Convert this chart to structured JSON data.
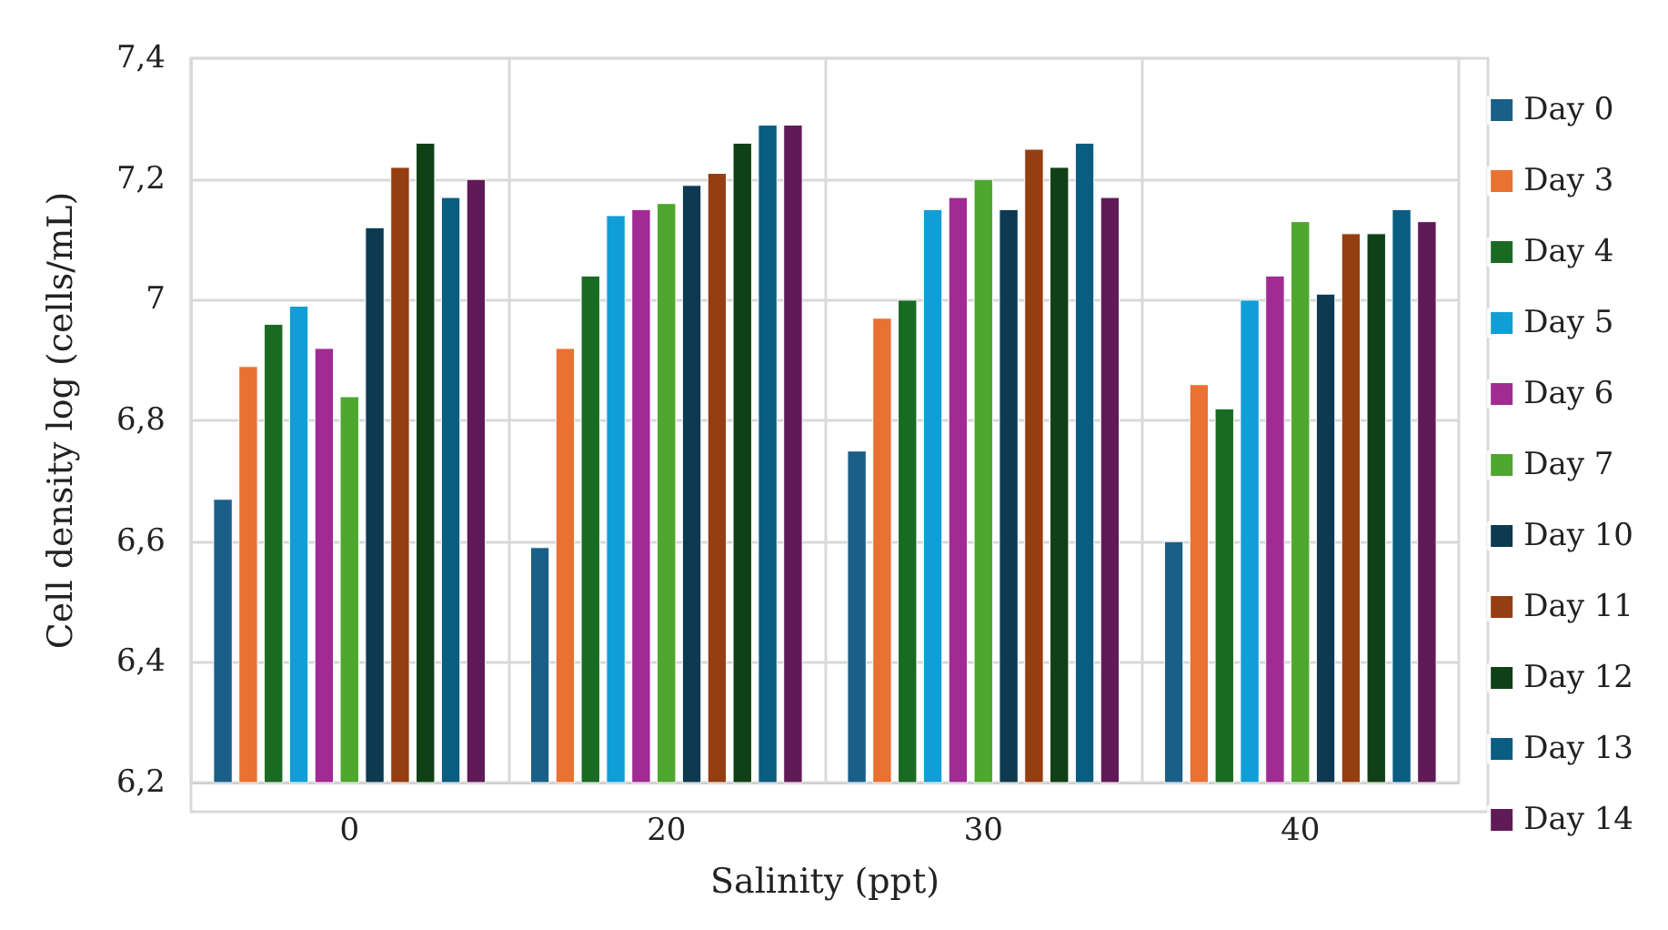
{
  "chart_data": {
    "type": "bar",
    "xlabel": "Salinity (ppt)",
    "ylabel": "Cell density log (cells/mL)",
    "categories": [
      "0",
      "20",
      "30",
      "40"
    ],
    "series": [
      {
        "name": "Day 0",
        "color": "#1a5f88",
        "values": [
          6.67,
          6.59,
          6.75,
          6.6
        ]
      },
      {
        "name": "Day 3",
        "color": "#e97132",
        "values": [
          6.89,
          6.92,
          6.97,
          6.86
        ]
      },
      {
        "name": "Day 4",
        "color": "#196b24",
        "values": [
          6.96,
          7.04,
          7.0,
          6.82
        ]
      },
      {
        "name": "Day 5",
        "color": "#0f9ed5",
        "values": [
          6.99,
          7.14,
          7.15,
          7.0
        ]
      },
      {
        "name": "Day 6",
        "color": "#a02b93",
        "values": [
          6.92,
          7.15,
          7.17,
          7.04
        ]
      },
      {
        "name": "Day 7",
        "color": "#4ea72e",
        "values": [
          6.84,
          7.16,
          7.2,
          7.13
        ]
      },
      {
        "name": "Day 10",
        "color": "#0e3a51",
        "values": [
          7.12,
          7.19,
          7.15,
          7.01
        ]
      },
      {
        "name": "Day 11",
        "color": "#953e12",
        "values": [
          7.22,
          7.21,
          7.25,
          7.11
        ]
      },
      {
        "name": "Day 12",
        "color": "#0f4016",
        "values": [
          7.26,
          7.26,
          7.22,
          7.11
        ]
      },
      {
        "name": "Day 13",
        "color": "#095d80",
        "values": [
          7.17,
          7.29,
          7.26,
          7.15
        ]
      },
      {
        "name": "Day 14",
        "color": "#601a58",
        "values": [
          7.2,
          7.29,
          7.17,
          7.13
        ]
      }
    ],
    "ylim": [
      6.2,
      7.4
    ],
    "yticks": [
      {
        "value": 6.2,
        "label": "6,2"
      },
      {
        "value": 6.4,
        "label": "6,4"
      },
      {
        "value": 6.6,
        "label": "6,6"
      },
      {
        "value": 6.8,
        "label": "6,8"
      },
      7,
      {
        "value": 7.2,
        "label": "7,2"
      },
      {
        "value": 7.4,
        "label": "7,4"
      }
    ],
    "grid": true,
    "legend": "right"
  }
}
